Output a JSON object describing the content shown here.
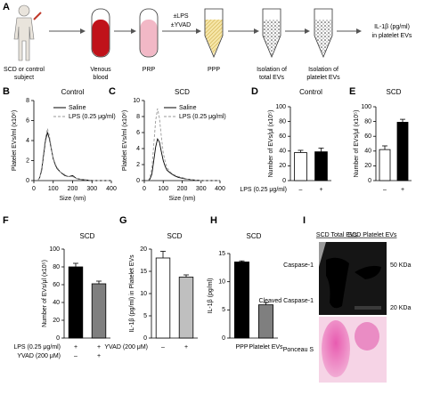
{
  "diagram": {
    "panel": "A",
    "steps": [
      {
        "label_lines": [
          "SCD or control",
          "subject"
        ]
      },
      {
        "label_lines": [
          "Venous",
          "blood"
        ]
      },
      {
        "label_lines": [
          "PRP"
        ]
      },
      {
        "label_lines": [
          "PPP"
        ]
      },
      {
        "label_lines": [
          "Isolation of",
          "total EVs"
        ]
      },
      {
        "label_lines": [
          "Isolation of",
          "platelet EVs"
        ]
      }
    ],
    "treatment": [
      "±LPS",
      "±YVAD"
    ],
    "output_lines": [
      "IL-1β (pg/ml)",
      "in platelet EVs"
    ]
  },
  "chart_data": [
    {
      "type": "line",
      "panel": "B",
      "title": "Control",
      "y_label": "Platelet EVs/ml (x10⁸)",
      "x_label": "Size (nm)",
      "x": [
        20,
        30,
        40,
        50,
        60,
        70,
        80,
        90,
        100,
        110,
        120,
        140,
        160,
        180,
        200,
        220,
        250,
        300,
        400
      ],
      "series": [
        {
          "name": "Saline",
          "color": "#000000",
          "line_style": "solid",
          "values": [
            0,
            0.3,
            1,
            2.5,
            4,
            4.8,
            4.2,
            3.2,
            2.2,
            1.6,
            1.2,
            0.8,
            0.5,
            0.4,
            0.5,
            0.2,
            0.1,
            0,
            0
          ]
        },
        {
          "name": "LPS (0.25 μg/ml)",
          "color": "#999999",
          "line_style": "dashed",
          "values": [
            0,
            0.3,
            1.2,
            2.8,
            4.3,
            5.2,
            4.5,
            3.3,
            2.3,
            1.7,
            1.3,
            0.8,
            0.6,
            0.4,
            0.4,
            0.2,
            0.1,
            0,
            0
          ]
        }
      ],
      "xlim": [
        0,
        400
      ],
      "xticks": [
        0,
        100,
        200,
        300,
        400
      ],
      "ylim": [
        0,
        8
      ],
      "yticks": [
        0,
        2,
        4,
        6,
        8
      ]
    },
    {
      "type": "line",
      "panel": "C",
      "title": "SCD",
      "y_label": "Platelet EVs/ml (x10⁸)",
      "x_label": "Size (nm)",
      "x": [
        20,
        30,
        40,
        50,
        60,
        70,
        80,
        90,
        100,
        110,
        120,
        140,
        160,
        180,
        200,
        220,
        250,
        300,
        400
      ],
      "series": [
        {
          "name": "Saline",
          "color": "#000000",
          "line_style": "solid",
          "values": [
            0,
            0.2,
            0.8,
            2.5,
            4.2,
            5.2,
            4.8,
            3.6,
            2.5,
            1.8,
            1.3,
            0.9,
            0.6,
            0.4,
            0.3,
            0.2,
            0.1,
            0,
            0
          ]
        },
        {
          "name": "LPS (0.25 μg/ml)",
          "color": "#999999",
          "line_style": "dashed",
          "values": [
            0,
            0.4,
            1.5,
            4.5,
            7.5,
            9,
            7.8,
            5.5,
            3.5,
            2.4,
            1.6,
            1,
            0.7,
            0.5,
            0.4,
            0.2,
            0.1,
            0,
            0
          ]
        }
      ],
      "xlim": [
        0,
        400
      ],
      "xticks": [
        0,
        100,
        200,
        300,
        400
      ],
      "ylim": [
        0,
        10
      ],
      "yticks": [
        0,
        2,
        4,
        6,
        8,
        10
      ]
    },
    {
      "type": "bar",
      "panel": "D",
      "title": "Control",
      "y_label": "Number of EVs/μl (x10⁵)",
      "category_rows": [
        {
          "label": "LPS (0.25 μg/ml)",
          "values": [
            "–",
            "+"
          ]
        }
      ],
      "values": [
        38,
        39
      ],
      "errors": [
        3,
        5
      ],
      "colors": [
        "#ffffff",
        "#000000"
      ],
      "ylim": [
        0,
        100
      ],
      "yticks": [
        0,
        20,
        40,
        60,
        80,
        100
      ]
    },
    {
      "type": "bar",
      "panel": "E",
      "title": "SCD",
      "y_label": "Number of EVs/μl (x10⁵)",
      "category_rows": [
        {
          "values": [
            "–",
            "+"
          ]
        }
      ],
      "values": [
        42,
        79
      ],
      "errors": [
        5,
        4
      ],
      "colors": [
        "#ffffff",
        "#000000"
      ],
      "ylim": [
        0,
        100
      ],
      "yticks": [
        0,
        20,
        40,
        60,
        80,
        100
      ]
    },
    {
      "type": "bar",
      "panel": "F",
      "title": "SCD",
      "y_label": "Number of EVs/μl (x10⁵)",
      "category_rows": [
        {
          "label": "LPS (0.25 μg/ml)",
          "values": [
            "+",
            "+"
          ]
        },
        {
          "label": "YVAD (200 μM)",
          "values": [
            "–",
            "+"
          ]
        }
      ],
      "values": [
        80,
        61
      ],
      "errors": [
        4,
        3
      ],
      "colors": [
        "#000000",
        "#7f7f7f"
      ],
      "ylim": [
        0,
        100
      ],
      "yticks": [
        0,
        20,
        40,
        60,
        80,
        100
      ]
    },
    {
      "type": "bar",
      "panel": "G",
      "title": "SCD",
      "y_label": "IL-1β (pg/ml) in Platelet EVs",
      "category_rows": [
        {
          "label": "YVAD (200 μM)",
          "values": [
            "–",
            "+"
          ]
        }
      ],
      "values": [
        18,
        13.7
      ],
      "errors": [
        1.5,
        0.5
      ],
      "colors": [
        "#ffffff",
        "#bfbfbf"
      ],
      "ylim": [
        0,
        20
      ],
      "yticks": [
        0,
        5,
        10,
        15,
        20
      ]
    },
    {
      "type": "bar",
      "panel": "H",
      "title": "SCD",
      "y_label": "IL-1β (pg/ml)",
      "category_rows": [
        {
          "values": [
            "PPP",
            "Platelet EVs"
          ]
        }
      ],
      "values": [
        13.5,
        5.9
      ],
      "errors": [
        0.2,
        0.4
      ],
      "colors": [
        "#000000",
        "#7f7f7f"
      ],
      "ylim": [
        0,
        15
      ],
      "yticks": [
        0,
        5,
        10,
        15
      ]
    }
  ],
  "blot": {
    "panel": "I",
    "lanes": [
      "SCD Total EVs",
      "SCD Platelet EVs"
    ],
    "bands": [
      "Caspase-1",
      "Cleaved Caspase-1"
    ],
    "markers": [
      "50 KDa",
      "20 KDa"
    ],
    "stain": "Ponceau S"
  }
}
